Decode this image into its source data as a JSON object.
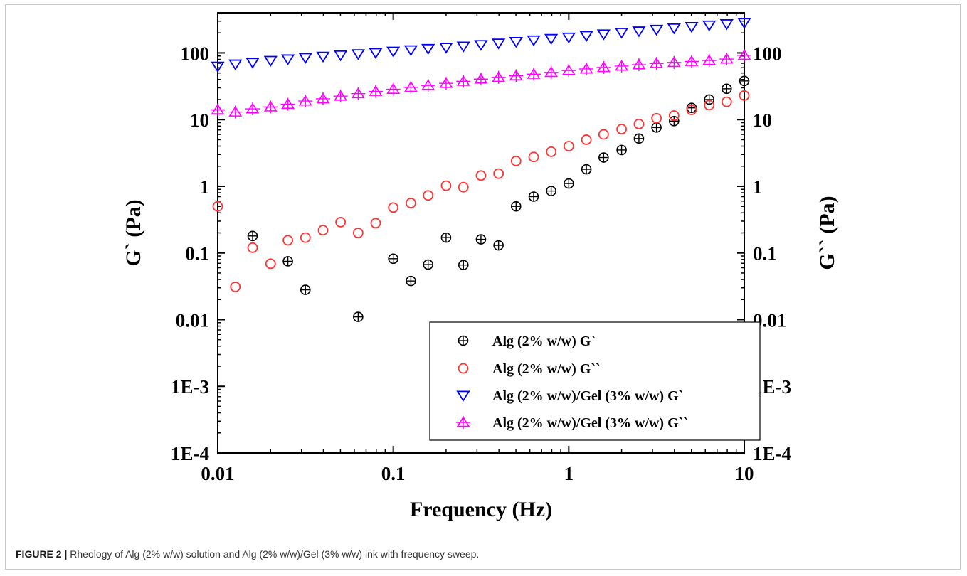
{
  "figure": {
    "caption_label": "FIGURE 2 |",
    "caption_text": " Rheology of Alg (2% w/w) solution and Alg (2% w/w)/Gel (3% w/w) ink with frequency sweep."
  },
  "chart_data": {
    "type": "scatter",
    "xlabel": "Frequency (Hz)",
    "ylabel": "G` (Pa)",
    "y2label": "G`` (Pa)",
    "xscale": "log",
    "yscale": "log",
    "xlim": [
      0.01,
      10
    ],
    "ylim": [
      0.0001,
      400
    ],
    "x_ticks": [
      0.01,
      0.1,
      1,
      10
    ],
    "x_tick_labels": [
      "0.01",
      "0.1",
      "1",
      "10"
    ],
    "y_ticks": [
      0.0001,
      0.001,
      0.01,
      0.1,
      1,
      10,
      100
    ],
    "y_tick_labels": [
      "1E-4",
      "1E-3",
      "0.01",
      "0.1",
      "1",
      "10",
      "100"
    ],
    "grid": false,
    "legend_position": "bottom-right",
    "series": [
      {
        "name": "Alg (2% w/w)  G`",
        "marker": "circle-plus",
        "color": "#000000",
        "x": [
          0.0158,
          0.0251,
          0.0316,
          0.0631,
          0.1,
          0.126,
          0.158,
          0.2,
          0.251,
          0.316,
          0.398,
          0.501,
          0.631,
          0.794,
          1.0,
          1.26,
          1.58,
          2.0,
          2.51,
          3.16,
          3.98,
          5.01,
          6.31,
          7.94,
          10.0
        ],
        "y": [
          0.18,
          0.075,
          0.028,
          0.011,
          0.082,
          0.038,
          0.067,
          0.17,
          0.066,
          0.16,
          0.13,
          0.5,
          0.7,
          0.85,
          1.1,
          1.8,
          2.7,
          3.5,
          5.2,
          7.6,
          9.5,
          15,
          20,
          29,
          38
        ]
      },
      {
        "name": "Alg (2% w/w)  G``",
        "marker": "circle",
        "color": "#ff3333",
        "x": [
          0.01,
          0.0126,
          0.0158,
          0.02,
          0.0251,
          0.0316,
          0.0398,
          0.0501,
          0.0631,
          0.0794,
          0.1,
          0.126,
          0.158,
          0.2,
          0.251,
          0.316,
          0.398,
          0.501,
          0.631,
          0.794,
          1.0,
          1.26,
          1.58,
          2.0,
          2.51,
          3.16,
          3.98,
          5.01,
          6.31,
          7.94,
          10.0
        ],
        "y": [
          0.5,
          0.031,
          0.12,
          0.069,
          0.155,
          0.17,
          0.22,
          0.29,
          0.2,
          0.28,
          0.48,
          0.56,
          0.73,
          1.02,
          0.97,
          1.45,
          1.55,
          2.4,
          2.75,
          3.3,
          4.0,
          5.0,
          6.0,
          7.2,
          8.6,
          10.5,
          11.5,
          14,
          16.5,
          18.5,
          23
        ]
      },
      {
        "name": "Alg (2% w/w)/Gel (3% w/w)  G`",
        "marker": "triangle-down",
        "color": "#0000ff",
        "x": [
          0.01,
          0.0126,
          0.0158,
          0.02,
          0.0251,
          0.0316,
          0.0398,
          0.0501,
          0.0631,
          0.0794,
          0.1,
          0.126,
          0.158,
          0.2,
          0.251,
          0.316,
          0.398,
          0.501,
          0.631,
          0.794,
          1.0,
          1.26,
          1.58,
          2.0,
          2.51,
          3.16,
          3.98,
          5.01,
          6.31,
          7.94,
          10.0
        ],
        "y": [
          63,
          68,
          72,
          77,
          81,
          85,
          89,
          93,
          97,
          101,
          106,
          111,
          116,
          121,
          126,
          133,
          140,
          148,
          156,
          164,
          172,
          182,
          192,
          203,
          213,
          225,
          236,
          248,
          261,
          273,
          285
        ]
      },
      {
        "name": "Alg (2% w/w)/Gel (3% w/w) G``",
        "marker": "triangle-up-plus",
        "color": "#ff00ff",
        "x": [
          0.01,
          0.0126,
          0.0158,
          0.02,
          0.0251,
          0.0316,
          0.0398,
          0.0501,
          0.0631,
          0.0794,
          0.1,
          0.126,
          0.158,
          0.2,
          0.251,
          0.316,
          0.398,
          0.501,
          0.631,
          0.794,
          1.0,
          1.26,
          1.58,
          2.0,
          2.51,
          3.16,
          3.98,
          5.01,
          6.31,
          7.94,
          10.0
        ],
        "y": [
          14,
          13,
          14.5,
          15.5,
          17,
          19,
          20.5,
          22.5,
          24.5,
          26.5,
          28.5,
          30.5,
          32.5,
          35,
          37.5,
          40.5,
          43,
          45.5,
          48,
          51,
          54.5,
          57.5,
          60.5,
          63.5,
          66.5,
          69.5,
          72,
          74.5,
          77,
          81,
          92
        ]
      }
    ]
  }
}
